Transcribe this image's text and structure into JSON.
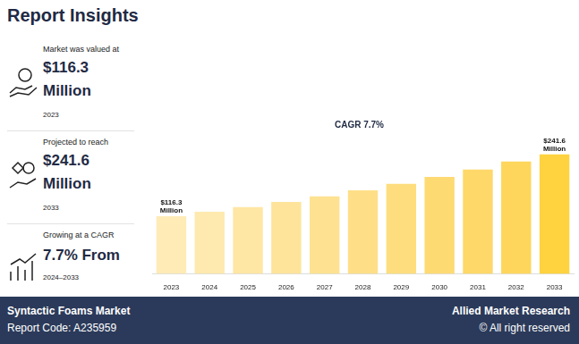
{
  "header": {
    "title": "Report Insights"
  },
  "stats": [
    {
      "caption": "Market was valued at",
      "value": "$116.3",
      "unit": "Million",
      "period": "2023"
    },
    {
      "caption": "Projected to reach",
      "value": "$241.6",
      "unit": "Million",
      "period": "2033"
    },
    {
      "caption": "Growing at a CAGR",
      "value": "7.7% From",
      "period": "2024–2033"
    }
  ],
  "chart_data": {
    "type": "bar",
    "title": "CAGR 7.7%",
    "categories": [
      "2023",
      "2024",
      "2025",
      "2026",
      "2027",
      "2028",
      "2029",
      "2030",
      "2031",
      "2032",
      "2033"
    ],
    "values": [
      116.3,
      125.3,
      134.9,
      145.3,
      156.5,
      168.6,
      181.6,
      195.6,
      210.6,
      226.9,
      241.6
    ],
    "value_labels": [
      "$116.3 Million",
      null,
      null,
      null,
      null,
      null,
      null,
      null,
      null,
      null,
      "$241.6 Million"
    ],
    "colors": [
      "#feebb6",
      "#fee9ae",
      "#fee6a4",
      "#fee49b",
      "#fee292",
      "#fedf88",
      "#fedd7e",
      "#feda73",
      "#fed869",
      "#fed65c",
      "#fed33f"
    ],
    "ylim": [
      0,
      250
    ],
    "yticks": [
      0,
      250
    ],
    "grid": false,
    "tick_labels": "x",
    "data_labels": true
  },
  "footer": {
    "market": "Syntactic Foams Market",
    "report_code": "Report Code: A235959",
    "publisher": "Allied Market Research",
    "rights": "© All right reserved"
  }
}
